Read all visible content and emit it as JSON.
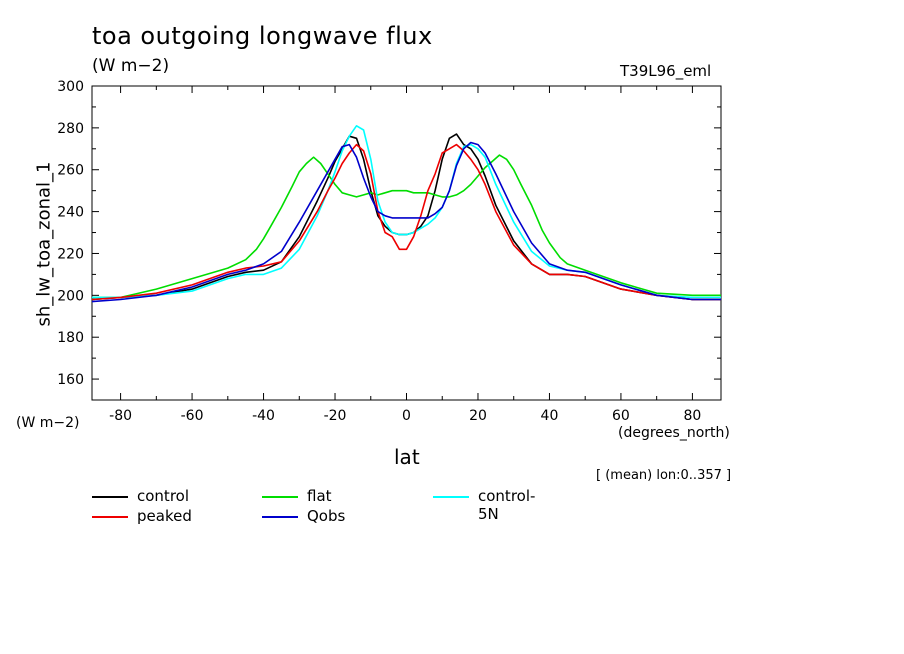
{
  "header": {
    "title": "toa outgoing longwave flux",
    "units": "(W m−2)",
    "run": "T39L96_eml",
    "yunits": "(W m−2)",
    "xunits": "(degrees_north)",
    "xlabel": "lat",
    "ylabel": "sh_lw_toa_zonal_1",
    "mean_note": "[ (mean) lon:0..357 ]"
  },
  "chart_data": {
    "type": "line",
    "title": "toa outgoing longwave flux",
    "xlabel": "lat",
    "ylabel": "sh_lw_toa_zonal_1",
    "xlim": [
      -88,
      88
    ],
    "ylim": [
      150,
      300
    ],
    "xticks": [
      -80,
      -60,
      -40,
      -20,
      0,
      20,
      40,
      60,
      80
    ],
    "yticks": [
      160,
      180,
      200,
      220,
      240,
      260,
      280,
      300
    ],
    "series": [
      {
        "name": "control",
        "color": "#000000",
        "x": [
          -88,
          -80,
          -70,
          -60,
          -50,
          -45,
          -40,
          -35,
          -30,
          -25,
          -22,
          -20,
          -18,
          -16,
          -14,
          -12,
          -10,
          -8,
          -6,
          -4,
          -2,
          0,
          2,
          4,
          6,
          8,
          10,
          12,
          14,
          16,
          18,
          20,
          22,
          25,
          30,
          35,
          40,
          45,
          50,
          60,
          70,
          80,
          88
        ],
        "y": [
          198,
          199,
          200,
          203,
          209,
          211,
          212,
          216,
          228,
          245,
          256,
          264,
          270,
          276,
          275,
          265,
          250,
          238,
          233,
          230,
          229,
          229,
          230,
          233,
          238,
          250,
          265,
          275,
          277,
          272,
          270,
          265,
          257,
          243,
          226,
          215,
          210,
          210,
          209,
          203,
          200,
          198,
          198
        ]
      },
      {
        "name": "flat",
        "color": "#00dd00",
        "x": [
          -88,
          -80,
          -70,
          -60,
          -50,
          -45,
          -42,
          -40,
          -38,
          -35,
          -32,
          -30,
          -28,
          -26,
          -24,
          -22,
          -20,
          -18,
          -16,
          -14,
          -12,
          -10,
          -8,
          -6,
          -4,
          -2,
          0,
          2,
          4,
          6,
          8,
          10,
          12,
          14,
          16,
          18,
          20,
          22,
          24,
          26,
          28,
          30,
          32,
          35,
          38,
          40,
          43,
          45,
          50,
          60,
          70,
          80,
          88
        ],
        "y": [
          199,
          199,
          203,
          208,
          213,
          217,
          222,
          227,
          233,
          242,
          252,
          259,
          263,
          266,
          263,
          258,
          253,
          249,
          248,
          247,
          248,
          249,
          248,
          249,
          250,
          250,
          250,
          249,
          249,
          249,
          248,
          247,
          247,
          248,
          250,
          253,
          257,
          261,
          264,
          267,
          265,
          260,
          253,
          243,
          231,
          225,
          218,
          215,
          212,
          206,
          201,
          200,
          200
        ]
      },
      {
        "name": "control-5N",
        "color": "#00ffff",
        "x": [
          -88,
          -80,
          -70,
          -60,
          -50,
          -45,
          -40,
          -35,
          -30,
          -25,
          -22,
          -20,
          -18,
          -16,
          -14,
          -12,
          -10,
          -8,
          -6,
          -4,
          -2,
          0,
          2,
          4,
          6,
          8,
          10,
          12,
          14,
          16,
          18,
          20,
          22,
          25,
          30,
          35,
          40,
          45,
          50,
          60,
          70,
          80,
          88
        ],
        "y": [
          199,
          199,
          200,
          202,
          208,
          210,
          210,
          213,
          222,
          238,
          250,
          259,
          269,
          276,
          281,
          279,
          265,
          245,
          235,
          230,
          229,
          229,
          230,
          232,
          234,
          237,
          242,
          250,
          263,
          271,
          272,
          270,
          266,
          253,
          235,
          221,
          214,
          212,
          211,
          205,
          200,
          199,
          199
        ]
      },
      {
        "name": "peaked",
        "color": "#ee0000",
        "x": [
          -88,
          -80,
          -70,
          -60,
          -50,
          -45,
          -40,
          -35,
          -30,
          -25,
          -22,
          -20,
          -18,
          -16,
          -14,
          -12,
          -10,
          -8,
          -6,
          -4,
          -2,
          0,
          2,
          4,
          6,
          8,
          10,
          12,
          14,
          16,
          18,
          20,
          22,
          25,
          30,
          35,
          40,
          45,
          50,
          60,
          70,
          80,
          88
        ],
        "y": [
          198,
          199,
          201,
          205,
          211,
          213,
          214,
          216,
          226,
          240,
          250,
          256,
          263,
          268,
          272,
          269,
          258,
          240,
          230,
          228,
          222,
          222,
          228,
          238,
          250,
          258,
          268,
          270,
          272,
          269,
          265,
          260,
          253,
          240,
          224,
          215,
          210,
          210,
          209,
          203,
          200,
          198,
          198
        ]
      },
      {
        "name": "Qobs",
        "color": "#0000cc",
        "x": [
          -88,
          -80,
          -70,
          -60,
          -50,
          -45,
          -40,
          -35,
          -30,
          -25,
          -22,
          -20,
          -18,
          -16,
          -14,
          -12,
          -10,
          -8,
          -6,
          -4,
          -2,
          0,
          2,
          4,
          6,
          8,
          10,
          12,
          14,
          16,
          18,
          20,
          22,
          25,
          30,
          35,
          40,
          45,
          50,
          60,
          70,
          80,
          88
        ],
        "y": [
          197,
          198,
          200,
          204,
          210,
          212,
          215,
          221,
          235,
          250,
          259,
          265,
          271,
          272,
          266,
          256,
          247,
          240,
          238,
          237,
          237,
          237,
          237,
          237,
          237,
          239,
          242,
          250,
          262,
          270,
          273,
          272,
          268,
          258,
          240,
          225,
          215,
          212,
          211,
          205,
          200,
          198,
          198
        ]
      }
    ]
  },
  "legend": [
    {
      "name": "control",
      "color": "#000000"
    },
    {
      "name": "flat",
      "color": "#00dd00"
    },
    {
      "name": "control-5N",
      "color": "#00ffff"
    },
    {
      "name": "peaked",
      "color": "#ee0000"
    },
    {
      "name": "Qobs",
      "color": "#0000cc"
    }
  ]
}
